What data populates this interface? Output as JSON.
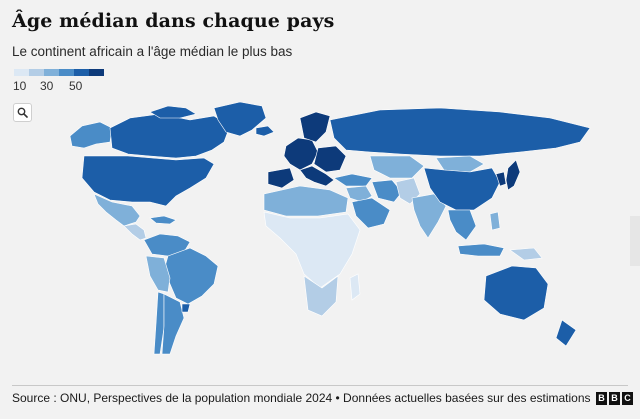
{
  "header": {
    "title": "Âge médian dans chaque pays",
    "subtitle": "Le continent africain a l'âge médian le plus bas"
  },
  "legend": {
    "scale_colors": [
      "#dce8f4",
      "#b3cde6",
      "#7fb0d9",
      "#4a8cc7",
      "#1c5ea8",
      "#0d3a7a"
    ],
    "labels": [
      "10",
      "30",
      "50"
    ]
  },
  "controls": {
    "zoom_icon": "search-icon"
  },
  "footer": {
    "source": "Source : ONU, Perspectives de la population mondiale 2024 • Données actuelles basées sur des estimations",
    "brand_letters": [
      "B",
      "B",
      "C"
    ]
  },
  "map": {
    "ocean_color": "#f2f2f2",
    "regions": [
      {
        "name": "Alaska",
        "level": 3
      },
      {
        "name": "Canada",
        "level": 4
      },
      {
        "name": "États-Unis",
        "level": 4
      },
      {
        "name": "Groenland",
        "level": 4
      },
      {
        "name": "Mexique",
        "level": 2
      },
      {
        "name": "Amérique centrale",
        "level": 1
      },
      {
        "name": "Caraïbes",
        "level": 3
      },
      {
        "name": "Colombie / Venezuela",
        "level": 3
      },
      {
        "name": "Brésil",
        "level": 3
      },
      {
        "name": "Pérou / Bolivie",
        "level": 2
      },
      {
        "name": "Chili",
        "level": 3
      },
      {
        "name": "Argentine",
        "level": 3
      },
      {
        "name": "Uruguay",
        "level": 4
      },
      {
        "name": "Islande",
        "level": 4
      },
      {
        "name": "Europe de l'Ouest",
        "level": 5
      },
      {
        "name": "Espagne / Portugal",
        "level": 6
      },
      {
        "name": "Italie / Grèce",
        "level": 6
      },
      {
        "name": "Europe de l'Est",
        "level": 5
      },
      {
        "name": "Russie",
        "level": 4
      },
      {
        "name": "Turquie",
        "level": 3
      },
      {
        "name": "Moyen-Orient",
        "level": 2
      },
      {
        "name": "Péninsule arabique",
        "level": 3
      },
      {
        "name": "Iran",
        "level": 3
      },
      {
        "name": "Asie centrale",
        "level": 2
      },
      {
        "name": "Afghanistan / Pakistan",
        "level": 1
      },
      {
        "name": "Inde",
        "level": 2
      },
      {
        "name": "Chine",
        "level": 4
      },
      {
        "name": "Mongolie",
        "level": 2
      },
      {
        "name": "Corée",
        "level": 5
      },
      {
        "name": "Japon",
        "level": 6
      },
      {
        "name": "Asie du Sud-Est",
        "level": 3
      },
      {
        "name": "Indonésie",
        "level": 3
      },
      {
        "name": "Philippines",
        "level": 2
      },
      {
        "name": "Papouasie",
        "level": 1
      },
      {
        "name": "Australie",
        "level": 4
      },
      {
        "name": "Nouvelle-Zélande",
        "level": 4
      },
      {
        "name": "Afrique du Nord",
        "level": 2
      },
      {
        "name": "Afrique subsaharienne",
        "level": 0
      },
      {
        "name": "Afrique australe",
        "level": 1
      },
      {
        "name": "Madagascar",
        "level": 0
      }
    ]
  }
}
